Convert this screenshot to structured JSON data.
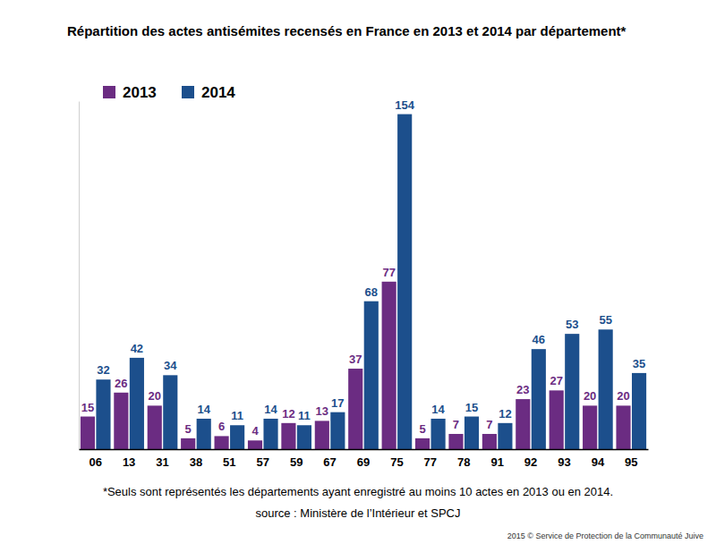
{
  "chart_data": {
    "type": "bar",
    "title": "Répartition des actes antisémites recensés en France en 2013 et 2014 par département*",
    "categories": [
      "06",
      "13",
      "31",
      "38",
      "51",
      "57",
      "59",
      "67",
      "69",
      "75",
      "77",
      "78",
      "91",
      "92",
      "93",
      "94",
      "95"
    ],
    "series": [
      {
        "name": "2013",
        "color": "#6b2c82",
        "values": [
          15,
          26,
          20,
          5,
          6,
          4,
          12,
          13,
          37,
          77,
          5,
          7,
          7,
          23,
          27,
          20,
          20
        ]
      },
      {
        "name": "2014",
        "color": "#1c4f8c",
        "values": [
          32,
          42,
          34,
          14,
          11,
          14,
          11,
          17,
          68,
          154,
          14,
          15,
          12,
          46,
          53,
          55,
          35
        ]
      }
    ],
    "ylim": [
      0,
      160
    ],
    "yticks": [],
    "grid": false,
    "legend": "top-left",
    "data_labels": true,
    "tick_labels": "x",
    "annotations": [
      "*Seuls sont représentés les départements ayant enregistré au moins 10 actes en 2013 ou en 2014.",
      "source : Ministère de l’Intérieur et SPCJ",
      "2015 © Service de Protection de la Communauté Juive"
    ]
  }
}
